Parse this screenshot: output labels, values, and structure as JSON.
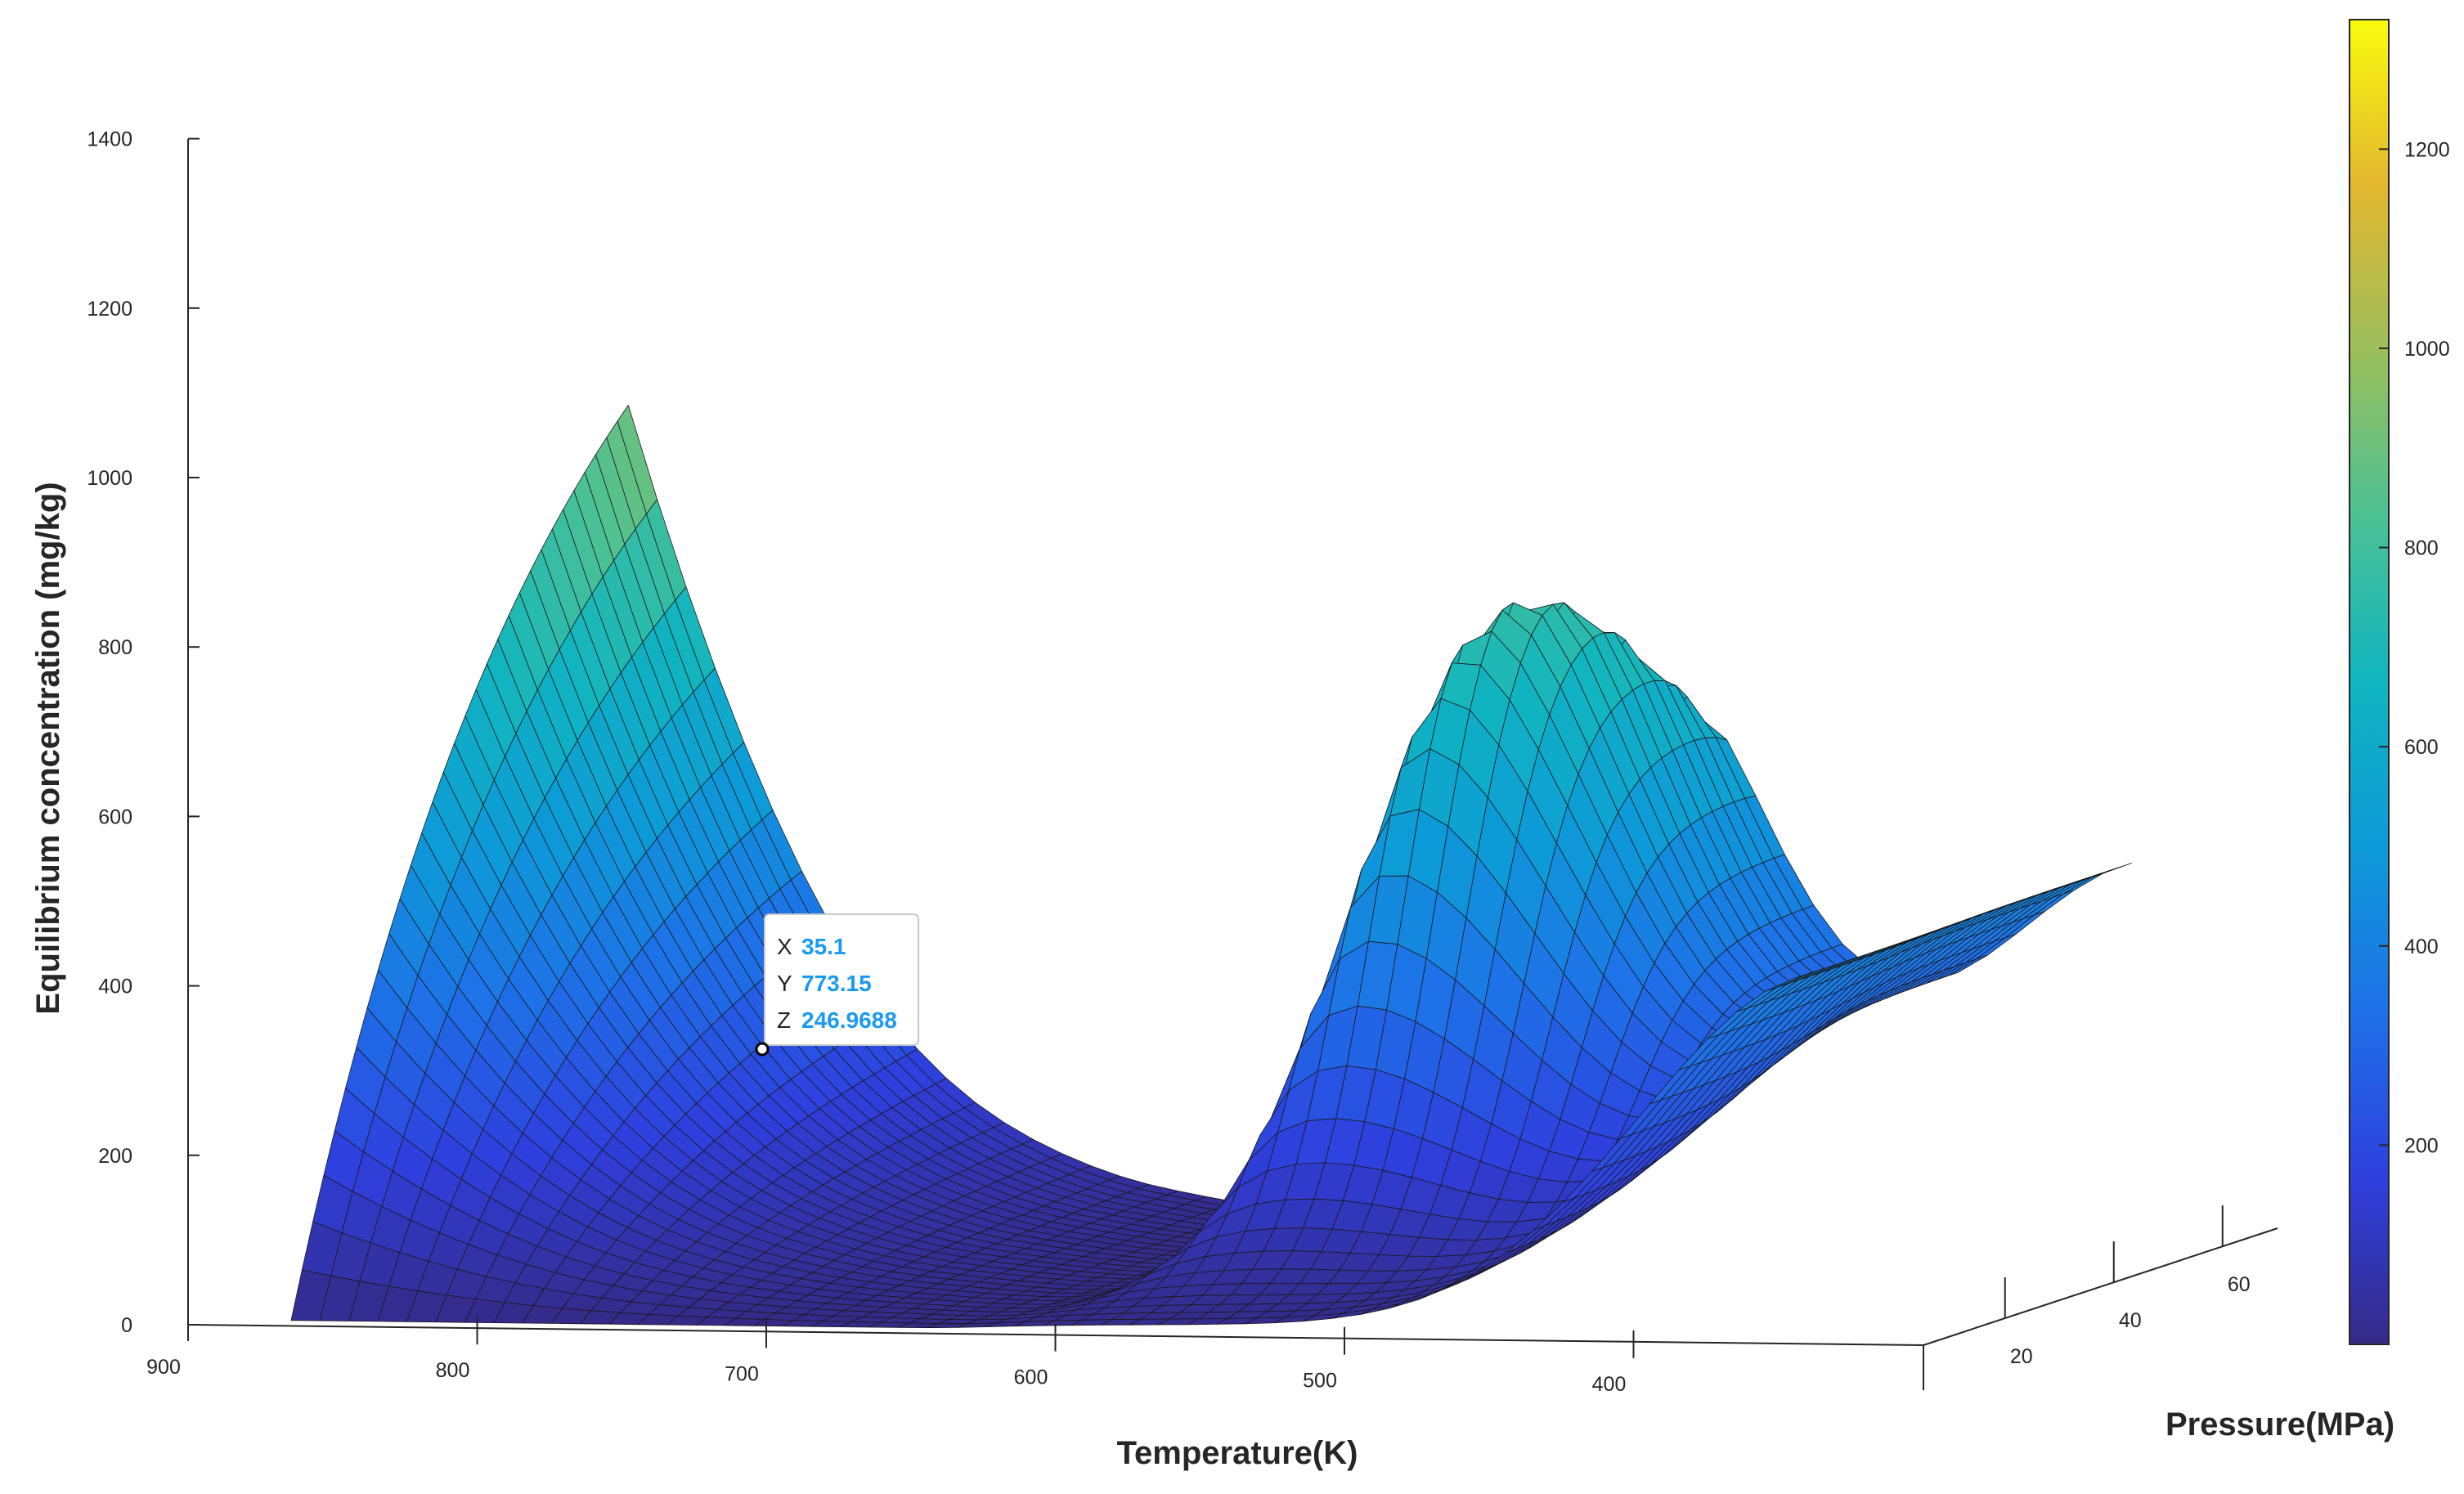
{
  "chart_data": {
    "type": "surface",
    "xlabel": "Pressure(MPa)",
    "ylabel": "Temperature(K)",
    "zlabel": "Equilibrium concentration (mg/kg)",
    "x_ticks": [
      20,
      40,
      60
    ],
    "y_ticks": [
      900,
      800,
      700,
      600,
      500,
      400
    ],
    "z_ticks": [
      0,
      200,
      400,
      600,
      800,
      1000,
      1200,
      1400
    ],
    "xlim": [
      5,
      70
    ],
    "ylim": [
      340,
      900
    ],
    "zlim": [
      0,
      1400
    ],
    "colorbar": {
      "colormap": "parula",
      "ticks": [
        200,
        400,
        600,
        800,
        1000,
        1200
      ],
      "range": [
        0,
        1330
      ]
    },
    "grid": false,
    "datatip": {
      "labels": [
        "X",
        "Y",
        "Z"
      ],
      "values": [
        "35.1",
        "773.15",
        "246.9688"
      ],
      "point": {
        "x": 35.1,
        "y": 773.15,
        "z": 246.9688
      }
    }
  }
}
